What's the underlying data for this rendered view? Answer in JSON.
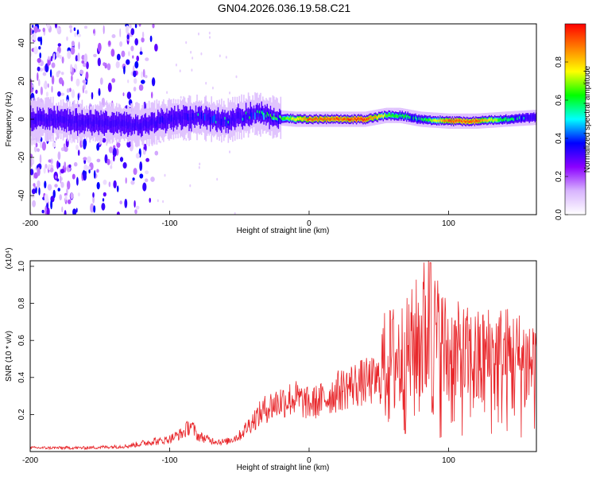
{
  "title": "GN04.2026.036.19.58.C21",
  "chart_data": [
    {
      "type": "heatmap",
      "title": "GN04.2026.036.19.58.C21",
      "xlabel": "Height of straight line (km)",
      "ylabel": "Frequency (Hz)",
      "xlim": [
        -200,
        163
      ],
      "ylim": [
        -50,
        50
      ],
      "xticks": [
        "-200",
        "-100",
        "0",
        "100"
      ],
      "yticks": [
        "-40",
        "-20",
        "0",
        "20",
        "40"
      ],
      "colorbar": {
        "label": "Normalized spectral amplitude",
        "range": [
          0,
          1
        ],
        "ticks": [
          "0.0",
          "0.2",
          "0.4",
          "0.6",
          "0.8"
        ],
        "colormap": [
          "#ffffff",
          "#d8b4fe",
          "#8b00ff",
          "#0000ff",
          "#00ffff",
          "#00ff00",
          "#ffff00",
          "#ff7f00",
          "#ff0000"
        ]
      },
      "ridge": {
        "x": [
          -200,
          -180,
          -160,
          -140,
          -120,
          -100,
          -80,
          -60,
          -40,
          -25,
          -10,
          0,
          20,
          40,
          55,
          65,
          80,
          100,
          120,
          140,
          163
        ],
        "frequency": [
          0,
          0,
          -2,
          -2,
          -3,
          0,
          1,
          -1,
          3,
          1,
          0,
          0,
          0,
          0,
          2,
          2,
          0,
          -1,
          -1,
          0,
          1
        ],
        "amplitude": [
          0.25,
          0.3,
          0.3,
          0.3,
          0.35,
          0.4,
          0.45,
          0.45,
          0.5,
          0.55,
          0.75,
          0.9,
          0.9,
          0.95,
          0.7,
          0.6,
          0.55,
          0.9,
          0.9,
          0.6,
          0.45
        ]
      }
    },
    {
      "type": "line",
      "series_name": "SNR",
      "xlabel": "Height of straight line (km)",
      "ylabel": "SNR (10 * v/v)",
      "scale_label": "(x10⁴)",
      "xlim": [
        -200,
        163
      ],
      "ylim": [
        0,
        1.03
      ],
      "xticks": [
        "-200",
        "-100",
        "0",
        "100"
      ],
      "yticks": [
        "0.2",
        "0.4",
        "0.6",
        "0.8",
        "1.0"
      ],
      "color": "#e8262a",
      "envelope": {
        "x": [
          -200,
          -160,
          -130,
          -115,
          -100,
          -90,
          -85,
          -80,
          -70,
          -60,
          -50,
          -40,
          -30,
          -20,
          -10,
          0,
          10,
          20,
          30,
          40,
          50,
          55,
          60,
          70,
          80,
          85,
          90,
          100,
          110,
          120,
          130,
          140,
          150,
          163
        ],
        "y": [
          0.02,
          0.02,
          0.03,
          0.05,
          0.08,
          0.12,
          0.17,
          0.1,
          0.07,
          0.06,
          0.1,
          0.2,
          0.28,
          0.32,
          0.34,
          0.3,
          0.33,
          0.38,
          0.42,
          0.44,
          0.45,
          0.48,
          0.5,
          0.52,
          0.62,
          0.7,
          0.62,
          0.52,
          0.5,
          0.48,
          0.5,
          0.5,
          0.48,
          0.47
        ]
      },
      "peak": {
        "x": 87,
        "y": 1.02
      }
    }
  ]
}
